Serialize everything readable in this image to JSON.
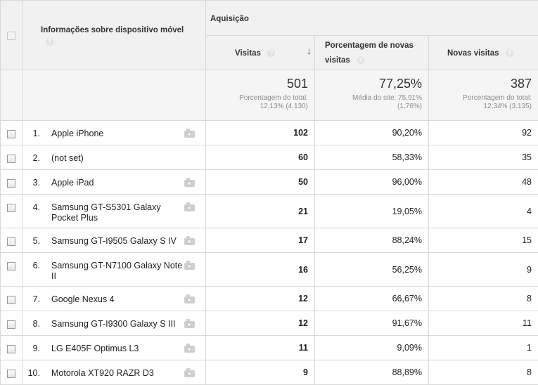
{
  "header": {
    "dimension_label": "Informações sobre dispositivo móvel",
    "group_label": "Aquisição",
    "columns": [
      {
        "label": "Visitas",
        "sort": "descending"
      },
      {
        "label": "Porcentagem de novas visitas"
      },
      {
        "label": "Novas visitas"
      }
    ],
    "help_glyph": "?"
  },
  "totals": {
    "visits": {
      "value": "501",
      "line1": "Porcentagem do total:",
      "line2": "12,13% (4.130)"
    },
    "new_pct": {
      "value": "77,25%",
      "line1": "Média do site: 75,91%",
      "line2": "(1,76%)"
    },
    "new_visits": {
      "value": "387",
      "line1": "Porcentagem do total:",
      "line2": "12,34% (3.135)"
    }
  },
  "rows": [
    {
      "index": "1.",
      "device": "Apple iPhone",
      "visits": "102",
      "new_pct": "90,20%",
      "new_visits": "92",
      "has_camera": true
    },
    {
      "index": "2.",
      "device": "(not set)",
      "visits": "60",
      "new_pct": "58,33%",
      "new_visits": "35",
      "has_camera": false
    },
    {
      "index": "3.",
      "device": "Apple iPad",
      "visits": "50",
      "new_pct": "96,00%",
      "new_visits": "48",
      "has_camera": true
    },
    {
      "index": "4.",
      "device": "Samsung GT-S5301 Galaxy Pocket Plus",
      "visits": "21",
      "new_pct": "19,05%",
      "new_visits": "4",
      "has_camera": true
    },
    {
      "index": "5.",
      "device": "Samsung GT-I9505 Galaxy S IV",
      "visits": "17",
      "new_pct": "88,24%",
      "new_visits": "15",
      "has_camera": true
    },
    {
      "index": "6.",
      "device": "Samsung GT-N7100 Galaxy Note II",
      "visits": "16",
      "new_pct": "56,25%",
      "new_visits": "9",
      "has_camera": true
    },
    {
      "index": "7.",
      "device": "Google Nexus 4",
      "visits": "12",
      "new_pct": "66,67%",
      "new_visits": "8",
      "has_camera": true
    },
    {
      "index": "8.",
      "device": "Samsung GT-I9300 Galaxy S III",
      "visits": "12",
      "new_pct": "91,67%",
      "new_visits": "11",
      "has_camera": true
    },
    {
      "index": "9.",
      "device": "LG E405F Optimus L3",
      "visits": "11",
      "new_pct": "9,09%",
      "new_visits": "1",
      "has_camera": true
    },
    {
      "index": "10.",
      "device": "Motorola XT920 RAZR D3",
      "visits": "9",
      "new_pct": "88,89%",
      "new_visits": "8",
      "has_camera": true
    }
  ]
}
